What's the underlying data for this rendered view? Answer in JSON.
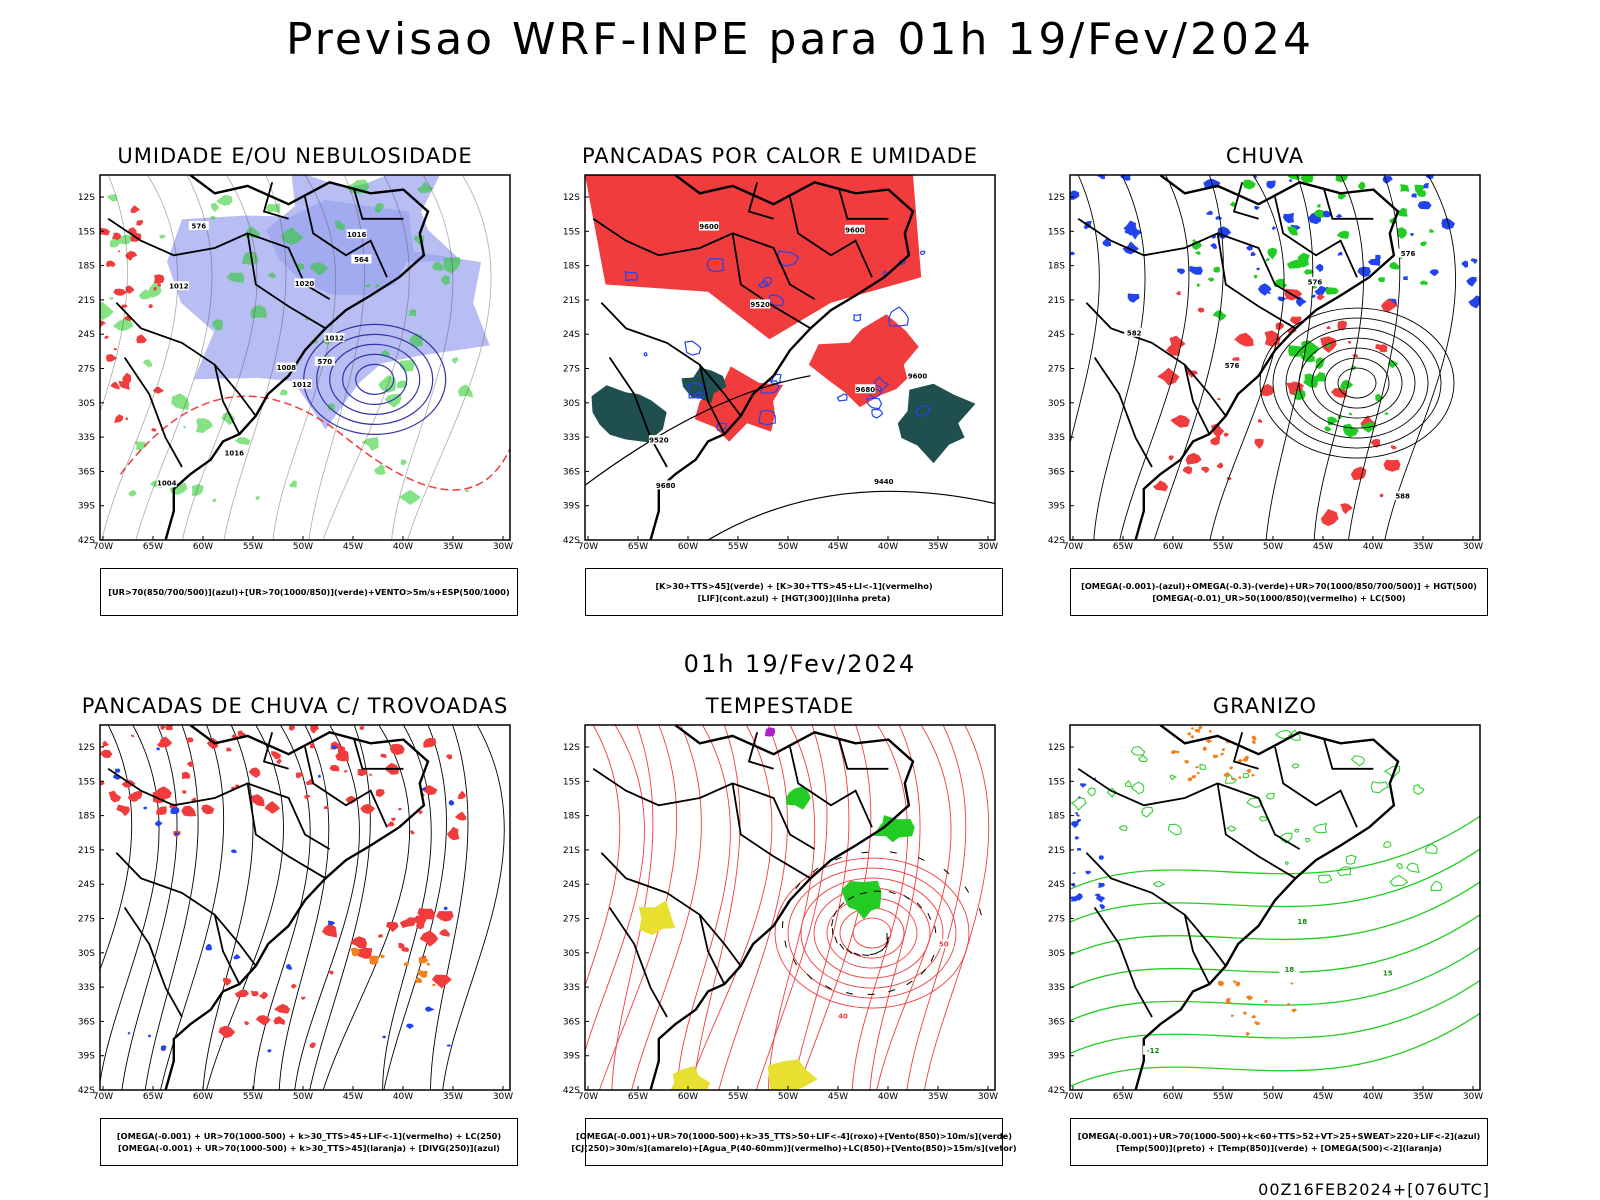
{
  "title": "Previsao WRF-INPE  para 01h 19/Fev/2024",
  "subtitle": "01h 19/Fev/2024",
  "footer": "00Z16FEB2024+[076UTC]",
  "axes": {
    "lat_labels": [
      "12S",
      "15S",
      "18S",
      "21S",
      "24S",
      "27S",
      "30S",
      "33S",
      "36S",
      "39S",
      "42S"
    ],
    "lon_labels": [
      "70W",
      "65W",
      "60W",
      "55W",
      "50W",
      "45W",
      "40W",
      "35W",
      "30W"
    ]
  },
  "panels": [
    {
      "title": "UMIDADE E/OU NEBULOSIDADE",
      "legend": [
        "[UR>70(850/700/500)](azul)+[UR>70(1000/850)](verde)+VENTO>5m/s+ESP(500/1000)"
      ],
      "contour_labels": [
        "1012",
        "1012",
        "1008",
        "1004",
        "1012",
        "1016",
        "1016",
        "1020",
        "564",
        "570",
        "576"
      ]
    },
    {
      "title": "PANCADAS POR CALOR E UMIDADE",
      "legend": [
        "[K>30+TTS>45](verde) + [K>30+TTS>45+LI<-1](vermelho)",
        "[LIF](cont.azul) + [HGT(300)](linha preta)"
      ],
      "contour_labels": [
        "9680",
        "9600",
        "9680",
        "9600",
        "9520",
        "9440",
        "9520",
        "9600"
      ]
    },
    {
      "title": "CHUVA",
      "legend": [
        "[OMEGA(-0.001)-(azul)+OMEGA(-0.3)-(verde)+UR>70(1000/850/700/500)] + HGT(500)",
        "[OMEGA(-0.01)_UR>50(1000/850)(vermelho) + LC(500)"
      ],
      "contour_labels": [
        "588",
        "582",
        "576",
        "576",
        "576"
      ]
    },
    {
      "title": "PANCADAS DE CHUVA C/ TROVOADAS",
      "legend": [
        "[OMEGA(-0.001) + UR>70(1000-500) + k>30_TTS>45+LIF<-1](vermelho) + LC(250)",
        "[OMEGA(-0.001) + UR>70(1000-500) + k>30_TTS>45](laranja) + [DIVG(250)](azul)"
      ],
      "contour_labels": []
    },
    {
      "title": "TEMPESTADE",
      "legend": [
        "[OMEGA(-0.001)+UR>70(1000-500)+k>35_TTS>50+LIF<-4](roxo)+[Vento(850)>10m/s](verde)",
        "[CJ(250)>30m/s](amarelo)+[Agua_P(40-60mm)](vermelho)+LC(850)+[Vento(850)>15m/s](vetor)"
      ],
      "contour_labels": [
        "50",
        "40"
      ]
    },
    {
      "title": "GRANIZO",
      "legend": [
        "[OMEGA(-0.001)+UR>70(1000-500)+k<60+TTS>52+VT>25+SWEAT>220+LIF<-2](azul)",
        "[Temp(500)](preto) + [Temp(850)](verde) + [OMEGA(500)<-2](laranja)"
      ],
      "contour_labels": [
        "-12",
        "15",
        "18",
        "18"
      ]
    }
  ],
  "colors": {
    "red": "#f03c3c",
    "green": "#22cc22",
    "blue": "#2244ee",
    "lightblue": "#9aa3ee",
    "darkteal": "#1f4f4f",
    "orange": "#f08020",
    "yellow": "#e8e030",
    "purple": "#aa22cc",
    "black": "#000000"
  }
}
